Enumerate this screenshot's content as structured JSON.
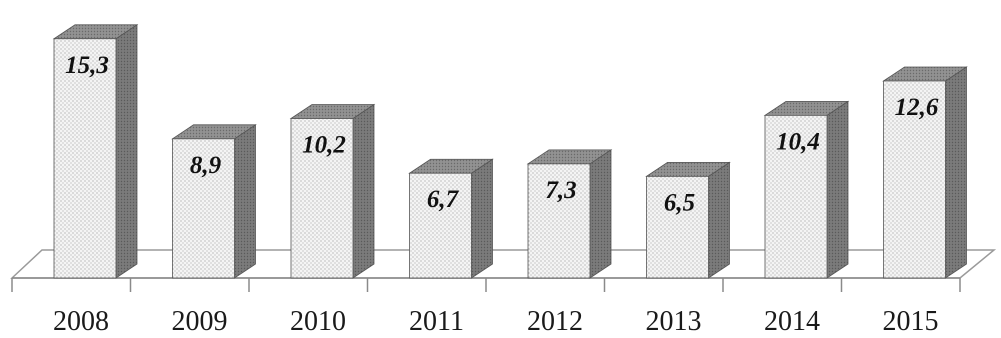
{
  "chart_data": {
    "type": "bar",
    "categories": [
      "2008",
      "2009",
      "2010",
      "2011",
      "2012",
      "2013",
      "2014",
      "2015"
    ],
    "values": [
      15.3,
      8.9,
      10.2,
      6.7,
      7.3,
      6.5,
      10.4,
      12.6
    ],
    "data_labels": [
      "15,3",
      "8,9",
      "10,2",
      "6,7",
      "7,3",
      "6,5",
      "10,4",
      "12,6"
    ],
    "title": "",
    "xlabel": "",
    "ylabel": "",
    "ylim": [
      0,
      16.5
    ],
    "grid": false,
    "legend": "none",
    "style": "3d-column",
    "colors": {
      "bar_front": "#f4f4f4",
      "bar_top": "#8f8f8f",
      "bar_side": "#7b7b7b",
      "floor_line": "#9a9a9a",
      "axis": "#8a8a8a"
    }
  }
}
